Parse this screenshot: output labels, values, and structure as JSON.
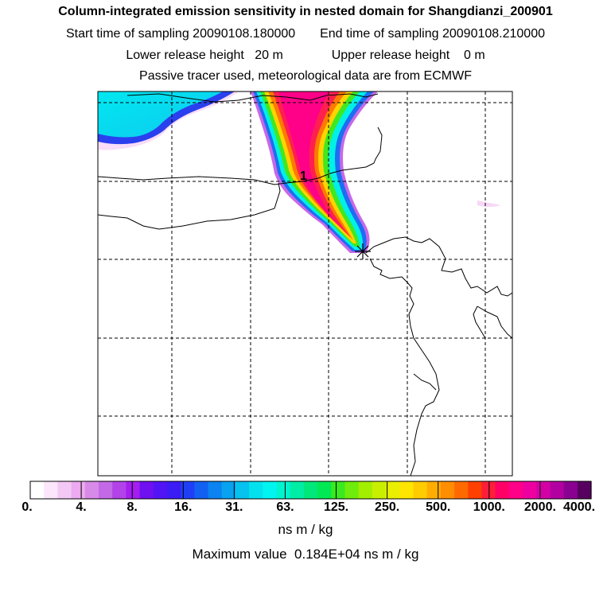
{
  "header": {
    "title": "Column-integrated emission sensitivity in nested domain for Shangdianzi_200901",
    "start_label": "Start time of sampling",
    "start_value": "20090108.180000",
    "end_label": "End time of sampling",
    "end_value": "20090108.210000",
    "lower_label": "Lower release height",
    "lower_value": "20 m",
    "upper_label": "Upper release height",
    "upper_value": "0 m",
    "note": "Passive tracer used, meteorological data are from ECMWF"
  },
  "colorbar": {
    "ticks": [
      "0.",
      "4.",
      "8.",
      "16.",
      "31.",
      "63.",
      "125.",
      "250.",
      "500.",
      "1000.",
      "2000.",
      "4000."
    ],
    "unit": "ns m / kg",
    "colors": [
      "#ffffff",
      "#fbe6fb",
      "#f4c8f4",
      "#ecaaf0",
      "#d78ae8",
      "#c469e6",
      "#b243e8",
      "#a51ef0",
      "#6f10f0",
      "#5314f5",
      "#3b1cf5",
      "#1f3ff6",
      "#1261f2",
      "#0b83f0",
      "#07a2f0",
      "#05c2ef",
      "#03e1ee",
      "#00f5f0",
      "#00f3cf",
      "#00eda5",
      "#00e87a",
      "#00e853",
      "#3ae91f",
      "#70ec0c",
      "#a4ee00",
      "#c9ef00",
      "#eaef00",
      "#ffe500",
      "#ffcc00",
      "#ffad00",
      "#ff8d00",
      "#ff6a00",
      "#ff4000",
      "#ff1e3a",
      "#ff0066",
      "#ff0088",
      "#ee00a0",
      "#d400a6",
      "#b300a0",
      "#8a0090",
      "#580060"
    ]
  },
  "max_label": "Maximum value",
  "max_value": "0.184E+04 ns m / kg",
  "marker_label": "1",
  "chart_data": {
    "type": "heatmap",
    "title": "Column-integrated emission sensitivity in nested domain for Shangdianzi_200901",
    "colorbar_levels": [
      0,
      4,
      8,
      16,
      31,
      63,
      125,
      250,
      500,
      1000,
      2000,
      4000
    ],
    "unit": "ns m / kg",
    "max_value": 1840,
    "grid": true,
    "receptor_marker": "asterisk at plume southern tip",
    "time_marker_label": "1"
  }
}
